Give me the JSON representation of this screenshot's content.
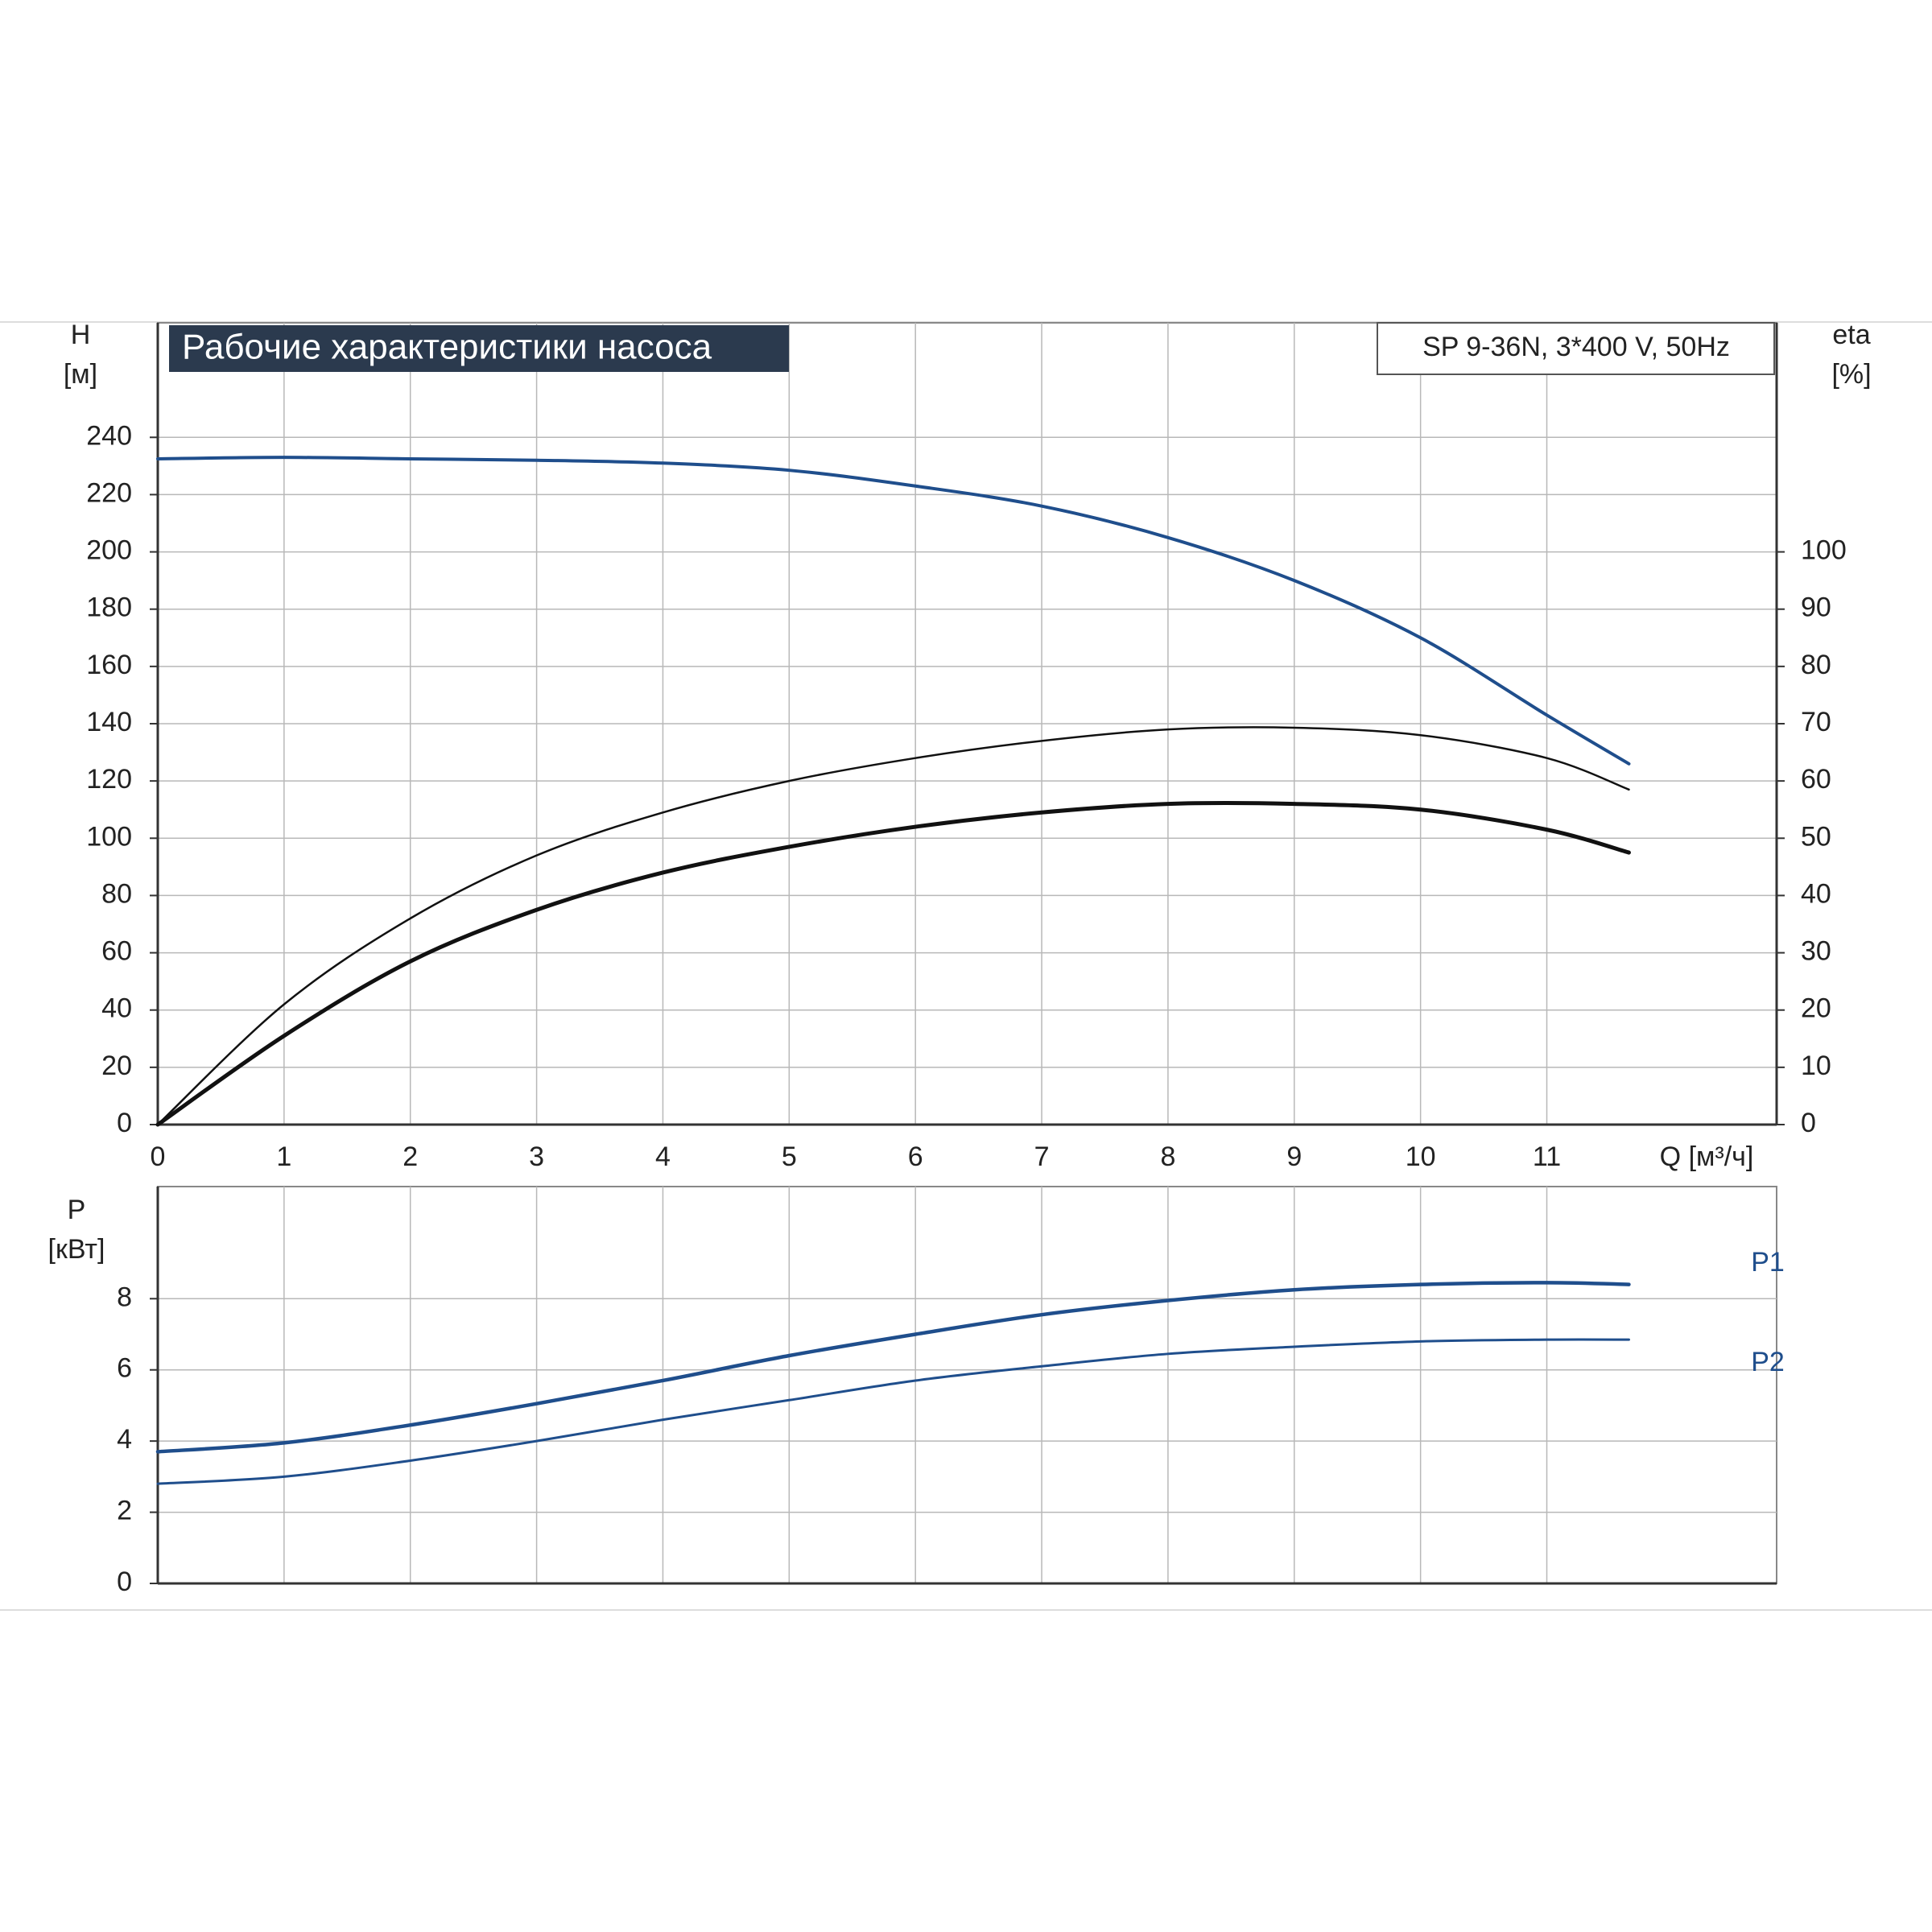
{
  "chart_data": [
    {
      "type": "line",
      "title": "Рабочие характеристики насоса",
      "subtitle": "SP 9-36N, 3*400 V, 50Hz",
      "x_label": "Q [м³/ч]",
      "y_label": [
        "H",
        "[м]"
      ],
      "y2_label": [
        "eta",
        "[%]"
      ],
      "x": [
        0,
        1,
        2,
        3,
        4,
        5,
        6,
        7,
        8,
        9,
        10,
        11,
        11.65
      ],
      "xlim": [
        0,
        12.82
      ],
      "xticks": [
        0,
        1,
        2,
        3,
        4,
        5,
        6,
        7,
        8,
        9,
        10,
        11
      ],
      "ylim": [
        0,
        280
      ],
      "yticks": [
        0,
        20,
        40,
        60,
        80,
        100,
        120,
        140,
        160,
        180,
        200,
        220,
        240
      ],
      "y2lim": [
        0,
        140
      ],
      "y2ticks": [
        0,
        10,
        20,
        30,
        40,
        50,
        60,
        70,
        80,
        90,
        100
      ],
      "grid": true,
      "series": [
        {
          "color": "#1f4e8c",
          "width": 4,
          "axis": "y",
          "values": [
            232.5,
            233,
            232.5,
            232,
            231,
            228.5,
            223,
            216,
            205,
            190,
            170,
            143,
            126
          ]
        },
        {
          "color": "#111111",
          "width": 2.5,
          "axis": "y2",
          "values": [
            0,
            21,
            36,
            47,
            54.5,
            60,
            64,
            67,
            69,
            69.3,
            68,
            64,
            58.5
          ]
        },
        {
          "color": "#111111",
          "width": 5,
          "axis": "y2",
          "values": [
            0,
            15.5,
            28.5,
            37.5,
            44,
            48.5,
            52,
            54.5,
            56,
            56,
            55,
            51.5,
            47.5
          ]
        }
      ]
    },
    {
      "type": "line",
      "y_label": [
        "P",
        "[кВт]"
      ],
      "x": [
        0,
        1,
        2,
        3,
        4,
        5,
        6,
        7,
        8,
        9,
        10,
        11,
        11.65
      ],
      "xlim": [
        0,
        12.82
      ],
      "ylim": [
        0,
        11.15
      ],
      "yticks": [
        0,
        2,
        4,
        6,
        8
      ],
      "grid": true,
      "series": [
        {
          "name": "P1",
          "color": "#1f4e8c",
          "width": 4.5,
          "values": [
            3.7,
            3.95,
            4.45,
            5.05,
            5.7,
            6.4,
            7.0,
            7.55,
            7.95,
            8.25,
            8.4,
            8.45,
            8.4
          ]
        },
        {
          "name": "P2",
          "color": "#1f4e8c",
          "width": 3,
          "values": [
            2.8,
            3.0,
            3.45,
            4.0,
            4.6,
            5.15,
            5.7,
            6.1,
            6.45,
            6.65,
            6.8,
            6.85,
            6.85
          ]
        }
      ]
    }
  ]
}
